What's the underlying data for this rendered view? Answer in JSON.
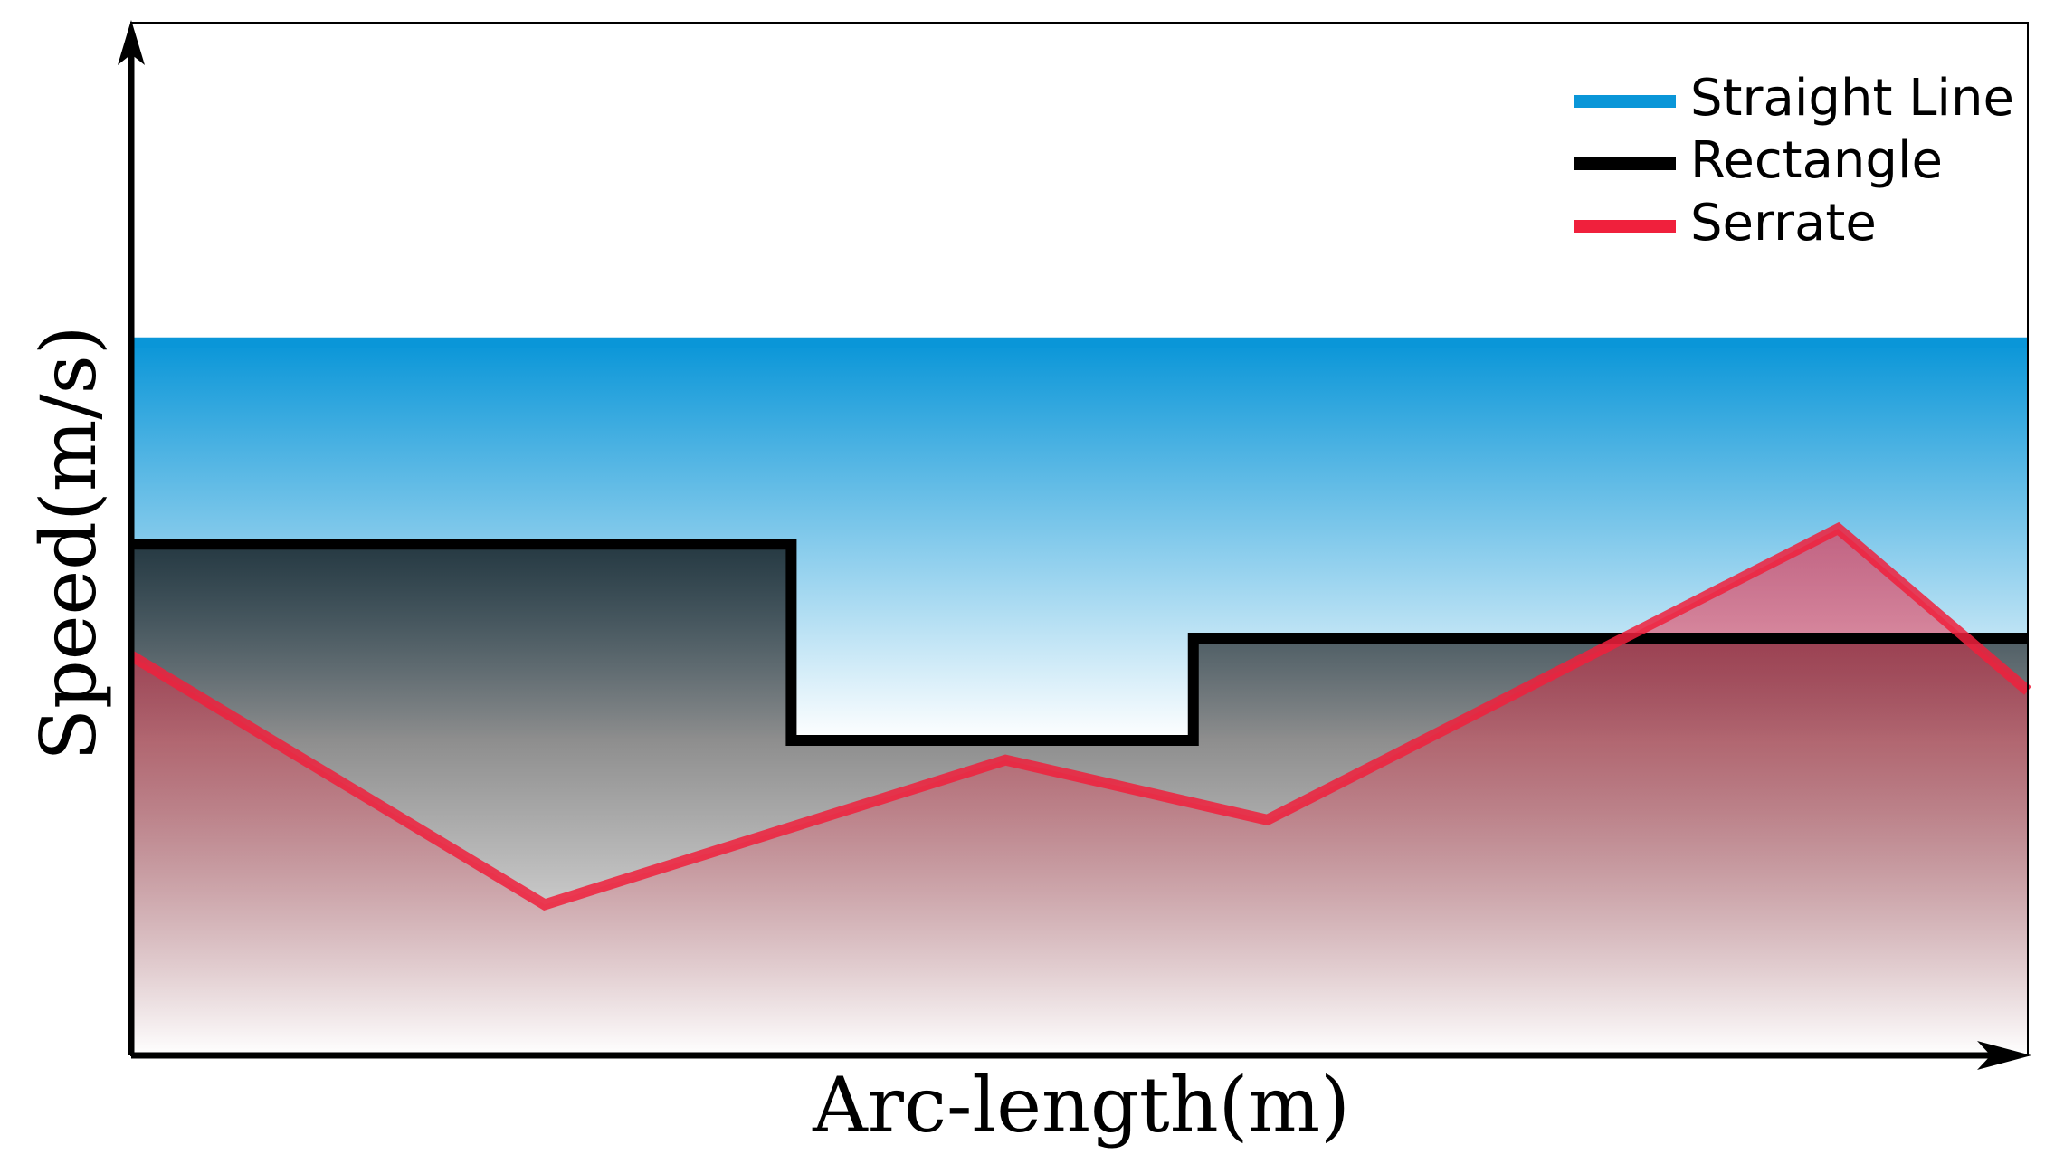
{
  "chart_data": {
    "type": "line",
    "x_label": "Arc-length(m)",
    "y_label": "Speed(m/s)",
    "xlim": [
      0,
      100
    ],
    "ylim": [
      0,
      100
    ],
    "legend": "upper right",
    "filled": true,
    "series": [
      {
        "name": "Straight Line",
        "color": "#0a96d8",
        "x": [
          0,
          100
        ],
        "values": [
          69,
          69
        ]
      },
      {
        "name": "Rectangle",
        "color": "#000000",
        "x": [
          0,
          34.8,
          34.8,
          56,
          56,
          100
        ],
        "values": [
          49.5,
          49.5,
          30.5,
          30.5,
          40.4,
          40.4
        ]
      },
      {
        "name": "Serrate",
        "color": "#f0203c",
        "x": [
          0,
          21.8,
          46.1,
          59.9,
          90,
          100
        ],
        "values": [
          38.7,
          14.6,
          28.6,
          22.8,
          51,
          35.3
        ]
      }
    ]
  }
}
